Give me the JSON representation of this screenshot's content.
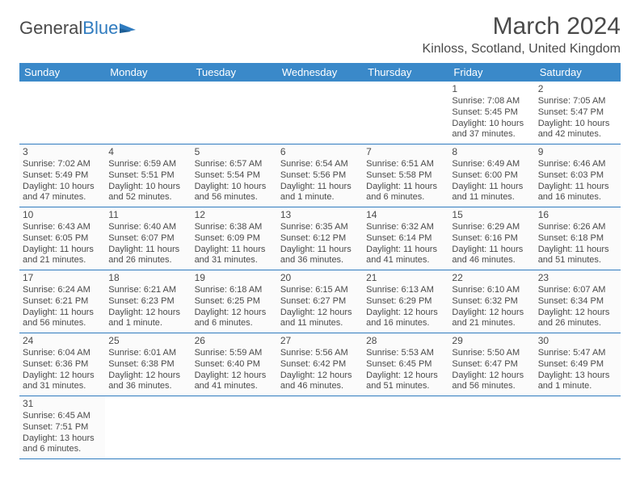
{
  "brand": {
    "name1": "General",
    "name2": "Blue"
  },
  "colors": {
    "accent": "#3a89c9",
    "accent_line": "#2f7bbf",
    "text": "#4a4a4a",
    "bg": "#ffffff",
    "cell_bg": "#fbfbfb"
  },
  "title": "March 2024",
  "location": "Kinloss, Scotland, United Kingdom",
  "day_headers": [
    "Sunday",
    "Monday",
    "Tuesday",
    "Wednesday",
    "Thursday",
    "Friday",
    "Saturday"
  ],
  "weeks": [
    [
      null,
      null,
      null,
      null,
      null,
      {
        "n": "1",
        "sunrise": "Sunrise: 7:08 AM",
        "sunset": "Sunset: 5:45 PM",
        "day1": "Daylight: 10 hours",
        "day2": "and 37 minutes."
      },
      {
        "n": "2",
        "sunrise": "Sunrise: 7:05 AM",
        "sunset": "Sunset: 5:47 PM",
        "day1": "Daylight: 10 hours",
        "day2": "and 42 minutes."
      }
    ],
    [
      {
        "n": "3",
        "sunrise": "Sunrise: 7:02 AM",
        "sunset": "Sunset: 5:49 PM",
        "day1": "Daylight: 10 hours",
        "day2": "and 47 minutes."
      },
      {
        "n": "4",
        "sunrise": "Sunrise: 6:59 AM",
        "sunset": "Sunset: 5:51 PM",
        "day1": "Daylight: 10 hours",
        "day2": "and 52 minutes."
      },
      {
        "n": "5",
        "sunrise": "Sunrise: 6:57 AM",
        "sunset": "Sunset: 5:54 PM",
        "day1": "Daylight: 10 hours",
        "day2": "and 56 minutes."
      },
      {
        "n": "6",
        "sunrise": "Sunrise: 6:54 AM",
        "sunset": "Sunset: 5:56 PM",
        "day1": "Daylight: 11 hours",
        "day2": "and 1 minute."
      },
      {
        "n": "7",
        "sunrise": "Sunrise: 6:51 AM",
        "sunset": "Sunset: 5:58 PM",
        "day1": "Daylight: 11 hours",
        "day2": "and 6 minutes."
      },
      {
        "n": "8",
        "sunrise": "Sunrise: 6:49 AM",
        "sunset": "Sunset: 6:00 PM",
        "day1": "Daylight: 11 hours",
        "day2": "and 11 minutes."
      },
      {
        "n": "9",
        "sunrise": "Sunrise: 6:46 AM",
        "sunset": "Sunset: 6:03 PM",
        "day1": "Daylight: 11 hours",
        "day2": "and 16 minutes."
      }
    ],
    [
      {
        "n": "10",
        "sunrise": "Sunrise: 6:43 AM",
        "sunset": "Sunset: 6:05 PM",
        "day1": "Daylight: 11 hours",
        "day2": "and 21 minutes."
      },
      {
        "n": "11",
        "sunrise": "Sunrise: 6:40 AM",
        "sunset": "Sunset: 6:07 PM",
        "day1": "Daylight: 11 hours",
        "day2": "and 26 minutes."
      },
      {
        "n": "12",
        "sunrise": "Sunrise: 6:38 AM",
        "sunset": "Sunset: 6:09 PM",
        "day1": "Daylight: 11 hours",
        "day2": "and 31 minutes."
      },
      {
        "n": "13",
        "sunrise": "Sunrise: 6:35 AM",
        "sunset": "Sunset: 6:12 PM",
        "day1": "Daylight: 11 hours",
        "day2": "and 36 minutes."
      },
      {
        "n": "14",
        "sunrise": "Sunrise: 6:32 AM",
        "sunset": "Sunset: 6:14 PM",
        "day1": "Daylight: 11 hours",
        "day2": "and 41 minutes."
      },
      {
        "n": "15",
        "sunrise": "Sunrise: 6:29 AM",
        "sunset": "Sunset: 6:16 PM",
        "day1": "Daylight: 11 hours",
        "day2": "and 46 minutes."
      },
      {
        "n": "16",
        "sunrise": "Sunrise: 6:26 AM",
        "sunset": "Sunset: 6:18 PM",
        "day1": "Daylight: 11 hours",
        "day2": "and 51 minutes."
      }
    ],
    [
      {
        "n": "17",
        "sunrise": "Sunrise: 6:24 AM",
        "sunset": "Sunset: 6:21 PM",
        "day1": "Daylight: 11 hours",
        "day2": "and 56 minutes."
      },
      {
        "n": "18",
        "sunrise": "Sunrise: 6:21 AM",
        "sunset": "Sunset: 6:23 PM",
        "day1": "Daylight: 12 hours",
        "day2": "and 1 minute."
      },
      {
        "n": "19",
        "sunrise": "Sunrise: 6:18 AM",
        "sunset": "Sunset: 6:25 PM",
        "day1": "Daylight: 12 hours",
        "day2": "and 6 minutes."
      },
      {
        "n": "20",
        "sunrise": "Sunrise: 6:15 AM",
        "sunset": "Sunset: 6:27 PM",
        "day1": "Daylight: 12 hours",
        "day2": "and 11 minutes."
      },
      {
        "n": "21",
        "sunrise": "Sunrise: 6:13 AM",
        "sunset": "Sunset: 6:29 PM",
        "day1": "Daylight: 12 hours",
        "day2": "and 16 minutes."
      },
      {
        "n": "22",
        "sunrise": "Sunrise: 6:10 AM",
        "sunset": "Sunset: 6:32 PM",
        "day1": "Daylight: 12 hours",
        "day2": "and 21 minutes."
      },
      {
        "n": "23",
        "sunrise": "Sunrise: 6:07 AM",
        "sunset": "Sunset: 6:34 PM",
        "day1": "Daylight: 12 hours",
        "day2": "and 26 minutes."
      }
    ],
    [
      {
        "n": "24",
        "sunrise": "Sunrise: 6:04 AM",
        "sunset": "Sunset: 6:36 PM",
        "day1": "Daylight: 12 hours",
        "day2": "and 31 minutes."
      },
      {
        "n": "25",
        "sunrise": "Sunrise: 6:01 AM",
        "sunset": "Sunset: 6:38 PM",
        "day1": "Daylight: 12 hours",
        "day2": "and 36 minutes."
      },
      {
        "n": "26",
        "sunrise": "Sunrise: 5:59 AM",
        "sunset": "Sunset: 6:40 PM",
        "day1": "Daylight: 12 hours",
        "day2": "and 41 minutes."
      },
      {
        "n": "27",
        "sunrise": "Sunrise: 5:56 AM",
        "sunset": "Sunset: 6:42 PM",
        "day1": "Daylight: 12 hours",
        "day2": "and 46 minutes."
      },
      {
        "n": "28",
        "sunrise": "Sunrise: 5:53 AM",
        "sunset": "Sunset: 6:45 PM",
        "day1": "Daylight: 12 hours",
        "day2": "and 51 minutes."
      },
      {
        "n": "29",
        "sunrise": "Sunrise: 5:50 AM",
        "sunset": "Sunset: 6:47 PM",
        "day1": "Daylight: 12 hours",
        "day2": "and 56 minutes."
      },
      {
        "n": "30",
        "sunrise": "Sunrise: 5:47 AM",
        "sunset": "Sunset: 6:49 PM",
        "day1": "Daylight: 13 hours",
        "day2": "and 1 minute."
      }
    ],
    [
      {
        "n": "31",
        "sunrise": "Sunrise: 6:45 AM",
        "sunset": "Sunset: 7:51 PM",
        "day1": "Daylight: 13 hours",
        "day2": "and 6 minutes."
      },
      null,
      null,
      null,
      null,
      null,
      null
    ]
  ]
}
